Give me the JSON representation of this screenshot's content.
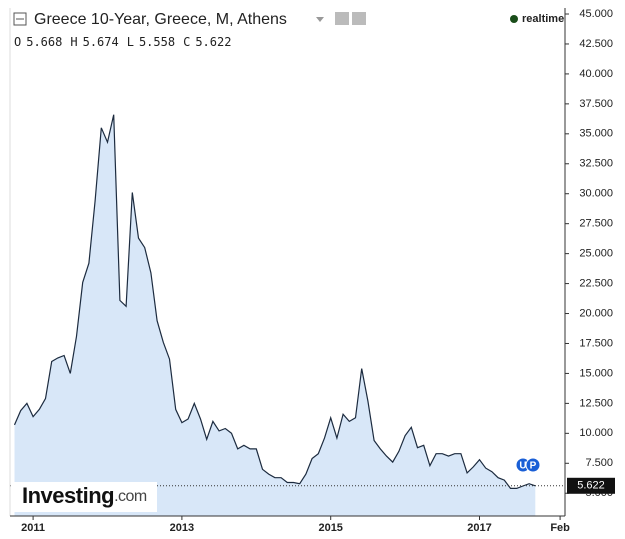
{
  "header": {
    "title": "Greece 10-Year, Greece, M, Athens",
    "status": "realtime",
    "ohlc": [
      {
        "label": "O",
        "value": 5.668
      },
      {
        "label": "H",
        "value": 5.674
      },
      {
        "label": "L",
        "value": 5.558
      },
      {
        "label": "C",
        "value": 5.622
      }
    ]
  },
  "logo": {
    "brand": "Investing",
    "suffix": ".com"
  },
  "chart_data": {
    "type": "area",
    "x": [
      "2010-10",
      "2010-11",
      "2010-12",
      "2011-01",
      "2011-02",
      "2011-03",
      "2011-04",
      "2011-05",
      "2011-06",
      "2011-07",
      "2011-08",
      "2011-09",
      "2011-10",
      "2011-11",
      "2011-12",
      "2012-01",
      "2012-02",
      "2012-03",
      "2012-04",
      "2012-05",
      "2012-06",
      "2012-07",
      "2012-08",
      "2012-09",
      "2012-10",
      "2012-11",
      "2012-12",
      "2013-01",
      "2013-02",
      "2013-03",
      "2013-04",
      "2013-05",
      "2013-06",
      "2013-07",
      "2013-08",
      "2013-09",
      "2013-10",
      "2013-11",
      "2013-12",
      "2014-01",
      "2014-02",
      "2014-03",
      "2014-04",
      "2014-05",
      "2014-06",
      "2014-07",
      "2014-08",
      "2014-09",
      "2014-10",
      "2014-11",
      "2014-12",
      "2015-01",
      "2015-02",
      "2015-03",
      "2015-04",
      "2015-05",
      "2015-06",
      "2015-07",
      "2015-08",
      "2015-09",
      "2015-10",
      "2015-11",
      "2015-12",
      "2016-01",
      "2016-02",
      "2016-03",
      "2016-04",
      "2016-05",
      "2016-06",
      "2016-07",
      "2016-08",
      "2016-09",
      "2016-10",
      "2016-11",
      "2016-12",
      "2017-01",
      "2017-02",
      "2017-03",
      "2017-04",
      "2017-05",
      "2017-06",
      "2017-07",
      "2017-08",
      "2017-09",
      "2017-10"
    ],
    "values": [
      10.7,
      11.9,
      12.5,
      11.4,
      12.0,
      12.9,
      16.0,
      16.3,
      16.5,
      15.0,
      18.1,
      22.6,
      24.2,
      29.4,
      35.5,
      34.3,
      36.6,
      21.1,
      20.6,
      30.1,
      26.3,
      25.5,
      23.4,
      19.4,
      17.6,
      16.2,
      12.0,
      10.9,
      11.2,
      12.5,
      11.2,
      9.5,
      11.0,
      10.2,
      10.4,
      10.0,
      8.7,
      9.0,
      8.7,
      8.7,
      7.0,
      6.6,
      6.3,
      6.3,
      5.9,
      5.9,
      5.8,
      6.6,
      7.9,
      8.3,
      9.6,
      11.3,
      9.6,
      11.6,
      11.0,
      11.3,
      15.4,
      12.7,
      9.4,
      8.7,
      8.1,
      7.6,
      8.5,
      9.8,
      10.5,
      8.8,
      9.0,
      7.3,
      8.3,
      8.3,
      8.1,
      8.3,
      8.3,
      6.7,
      7.2,
      7.8,
      7.1,
      6.8,
      6.3,
      6.1,
      5.4,
      5.4,
      5.6,
      5.8,
      5.622
    ],
    "color": "#1c2b3f",
    "fill": "#d8e7f8",
    "ylim": [
      3.1,
      45.5
    ],
    "yticks": [
      {
        "value": 45,
        "label": "45.000"
      },
      {
        "value": 42.5,
        "label": "42.500"
      },
      {
        "value": 40,
        "label": "40.000"
      },
      {
        "value": 37.5,
        "label": "37.500"
      },
      {
        "value": 35,
        "label": "35.000"
      },
      {
        "value": 32.5,
        "label": "32.500"
      },
      {
        "value": 30,
        "label": "30.000"
      },
      {
        "value": 27.5,
        "label": "27.500"
      },
      {
        "value": 25,
        "label": "25.000"
      },
      {
        "value": 22.5,
        "label": "22.500"
      },
      {
        "value": 20,
        "label": "20.000"
      },
      {
        "value": 17.5,
        "label": "17.500"
      },
      {
        "value": 15,
        "label": "15.000"
      },
      {
        "value": 12.5,
        "label": "12.500"
      },
      {
        "value": 10,
        "label": "10.000"
      },
      {
        "value": 7.5,
        "label": "7.500"
      },
      {
        "value": 5,
        "label": "5.000"
      }
    ],
    "xticks": [
      {
        "value": "2011-01",
        "label": "2011"
      },
      {
        "value": "2013-01",
        "label": "2013"
      },
      {
        "value": "2015-01",
        "label": "2015"
      },
      {
        "value": "2017-01",
        "label": "2017"
      },
      {
        "value": "2018-02",
        "label": "Feb"
      }
    ],
    "events": [
      "U",
      "P"
    ]
  }
}
